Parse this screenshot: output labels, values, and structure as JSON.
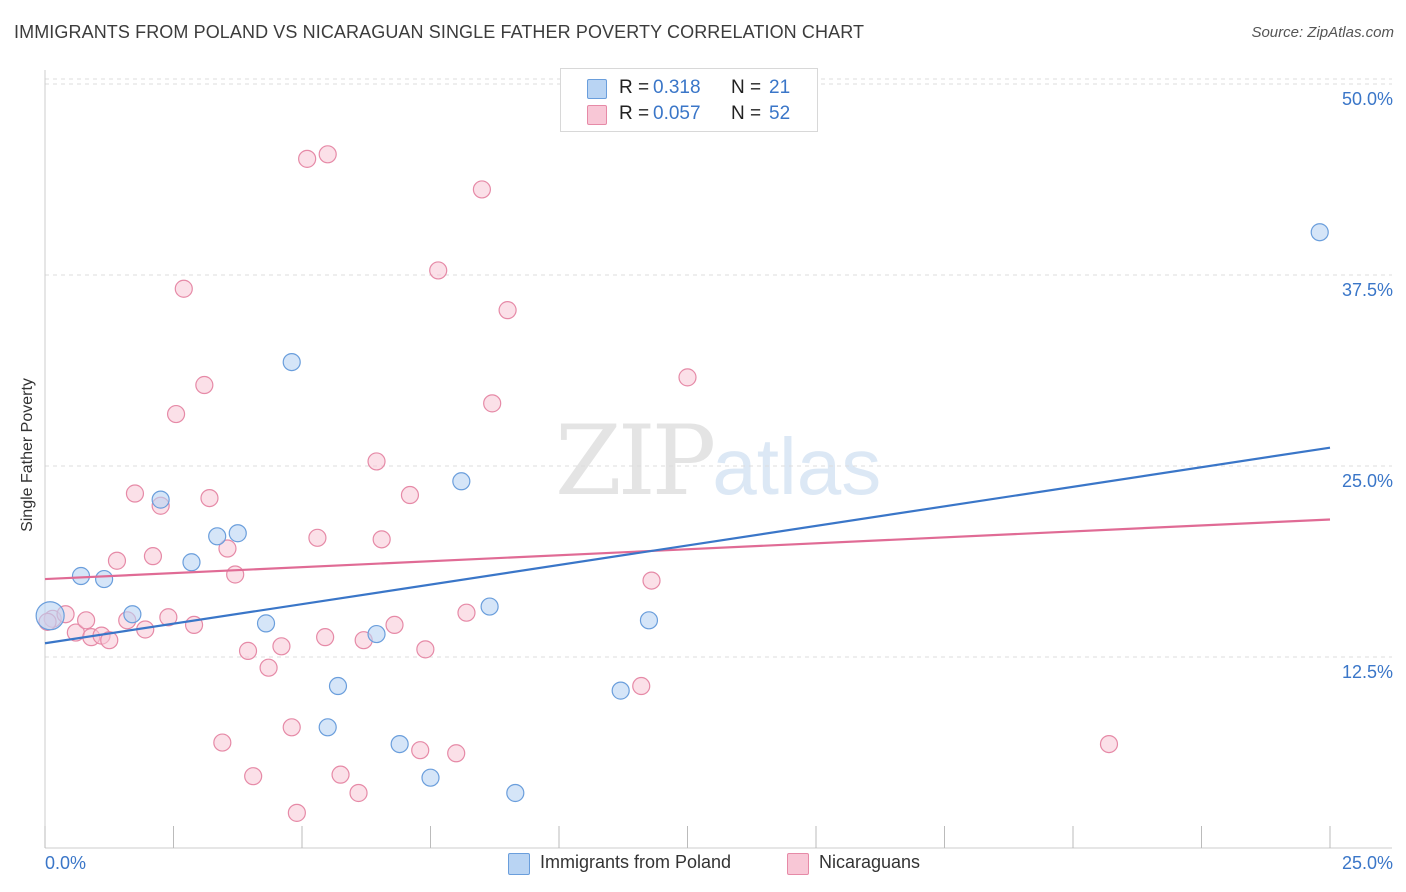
{
  "title": "IMMIGRANTS FROM POLAND VS NICARAGUAN SINGLE FATHER POVERTY CORRELATION CHART",
  "source": "Source: ZipAtlas.com",
  "watermark": {
    "zip": "ZIP",
    "atlas": "atlas"
  },
  "legend_top": [
    {
      "r_label": "R =",
      "r_value": "0.318",
      "n_label": "N =",
      "n_value": "21"
    },
    {
      "r_label": "R =",
      "r_value": "0.057",
      "n_label": "N =",
      "n_value": "52"
    }
  ],
  "colors": {
    "poland_fill": "#b9d4f3",
    "poland_stroke": "#6a9edc",
    "poland_line": "#3a76c8",
    "nic_fill": "#f8c7d6",
    "nic_stroke": "#e68aa7",
    "nic_line": "#e06b95",
    "tick_label": "#3a76c8",
    "grid": "#dddddd"
  },
  "chart_data": {
    "type": "scatter",
    "title": "IMMIGRANTS FROM POLAND VS NICARAGUAN SINGLE FATHER POVERTY CORRELATION CHART",
    "xlabel": "",
    "ylabel": "Single Father Poverty",
    "xlim": [
      0,
      25
    ],
    "ylim": [
      0,
      52.5
    ],
    "x_tick_labels": [
      "0.0%",
      "25.0%"
    ],
    "y_ticks": [
      12.5,
      25.0,
      37.5,
      50.0
    ],
    "y_tick_labels": [
      "12.5%",
      "25.0%",
      "37.5%",
      "50.0%"
    ],
    "grid": true,
    "legend_position": "bottom",
    "series": [
      {
        "name": "Immigrants from Poland",
        "r": 0.318,
        "n": 21,
        "trend": [
          [
            0,
            13.4
          ],
          [
            25,
            26.2
          ]
        ],
        "points": [
          [
            0.1,
            15.2
          ],
          [
            0.7,
            17.8
          ],
          [
            1.15,
            17.6
          ],
          [
            1.7,
            15.3
          ],
          [
            2.25,
            22.8
          ],
          [
            2.85,
            18.7
          ],
          [
            3.35,
            20.4
          ],
          [
            3.75,
            20.6
          ],
          [
            4.3,
            14.7
          ],
          [
            4.8,
            31.8
          ],
          [
            5.7,
            10.6
          ],
          [
            5.5,
            7.9
          ],
          [
            6.45,
            14.0
          ],
          [
            6.9,
            6.8
          ],
          [
            7.5,
            4.6
          ],
          [
            8.1,
            24.0
          ],
          [
            8.65,
            15.8
          ],
          [
            9.15,
            3.6
          ],
          [
            11.2,
            10.3
          ],
          [
            11.75,
            14.9
          ],
          [
            24.8,
            40.3
          ]
        ]
      },
      {
        "name": "Nicaraguans",
        "r": 0.057,
        "n": 52,
        "trend": [
          [
            0,
            17.6
          ],
          [
            25,
            21.5
          ]
        ],
        "points": [
          [
            0.15,
            15.0
          ],
          [
            0.4,
            15.3
          ],
          [
            0.6,
            14.1
          ],
          [
            0.8,
            14.9
          ],
          [
            0.9,
            13.8
          ],
          [
            1.1,
            13.9
          ],
          [
            1.25,
            13.6
          ],
          [
            1.4,
            18.8
          ],
          [
            1.6,
            14.9
          ],
          [
            1.75,
            23.2
          ],
          [
            1.95,
            14.3
          ],
          [
            2.1,
            19.1
          ],
          [
            2.25,
            22.4
          ],
          [
            2.4,
            15.1
          ],
          [
            2.55,
            28.4
          ],
          [
            2.7,
            36.6
          ],
          [
            2.9,
            14.6
          ],
          [
            3.1,
            30.3
          ],
          [
            3.2,
            22.9
          ],
          [
            3.45,
            6.9
          ],
          [
            3.55,
            19.6
          ],
          [
            3.7,
            17.9
          ],
          [
            3.95,
            12.9
          ],
          [
            4.05,
            4.7
          ],
          [
            4.35,
            11.8
          ],
          [
            4.6,
            13.2
          ],
          [
            4.8,
            7.9
          ],
          [
            4.9,
            2.3
          ],
          [
            5.1,
            45.1
          ],
          [
            5.3,
            20.3
          ],
          [
            5.45,
            13.8
          ],
          [
            5.5,
            45.4
          ],
          [
            5.75,
            4.8
          ],
          [
            6.1,
            3.6
          ],
          [
            6.2,
            13.6
          ],
          [
            6.45,
            25.3
          ],
          [
            6.55,
            20.2
          ],
          [
            6.8,
            14.6
          ],
          [
            7.1,
            23.1
          ],
          [
            7.3,
            6.4
          ],
          [
            7.4,
            13.0
          ],
          [
            7.65,
            37.8
          ],
          [
            8.0,
            6.2
          ],
          [
            8.2,
            15.4
          ],
          [
            8.5,
            43.1
          ],
          [
            8.7,
            29.1
          ],
          [
            9.0,
            35.2
          ],
          [
            11.6,
            10.6
          ],
          [
            11.8,
            17.5
          ],
          [
            12.5,
            30.8
          ],
          [
            20.7,
            6.8
          ],
          [
            0.05,
            14.8
          ]
        ]
      }
    ]
  }
}
